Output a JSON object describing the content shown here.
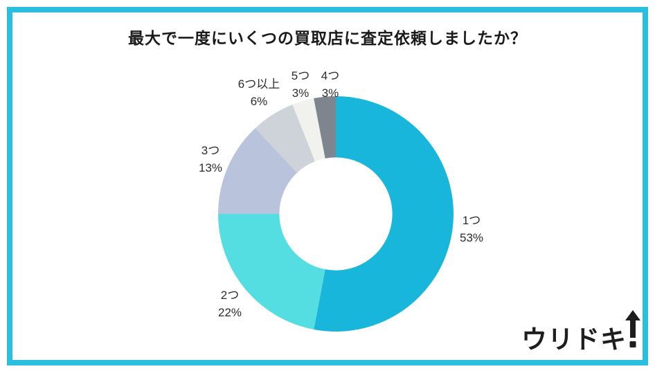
{
  "frame": {
    "border_color": "#2bbfdf"
  },
  "header": {
    "title": "最大で一度にいくつの買取店に査定依頼しましたか？"
  },
  "logo": {
    "text": "ウリドキ",
    "icon": "up-arrow-exclamation",
    "color": "#1e1e1e"
  },
  "chart_data": {
    "type": "pie",
    "subtype": "donut",
    "title": "最大で一度にいくつの買取店に査定依頼しましたか？",
    "categories": [
      "1つ",
      "2つ",
      "3つ",
      "6つ以上",
      "5つ",
      "4つ"
    ],
    "values": [
      53,
      22,
      13,
      6,
      3,
      3
    ],
    "value_labels": [
      "53%",
      "22%",
      "13%",
      "6%",
      "3%",
      "3%"
    ],
    "colors": [
      "#18b6db",
      "#55dee1",
      "#b9c3dc",
      "#ced3da",
      "#f1f1ed",
      "#7e858e"
    ],
    "start_angle_deg": 0,
    "direction": "clockwise",
    "inner_radius_ratio": 0.48,
    "legend": "none",
    "label_position": "outside"
  }
}
